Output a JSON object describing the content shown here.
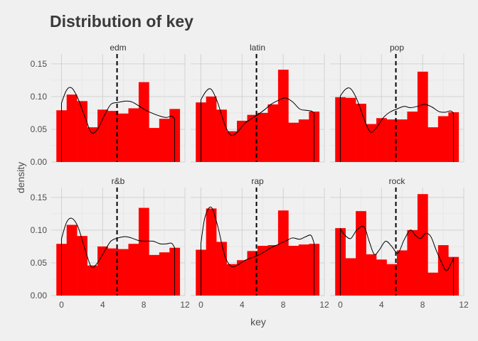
{
  "chart_data": {
    "type": "bar",
    "title": "Distribution of key",
    "xlabel": "key",
    "ylabel": "density",
    "xlim": [
      -1,
      12
    ],
    "ylim": [
      0,
      0.165
    ],
    "x_ticks": [
      0,
      4,
      8,
      12
    ],
    "y_ticks": [
      0.0,
      0.05,
      0.1,
      0.15
    ],
    "y_tick_labels": [
      "0.00",
      "0.05",
      "0.10",
      "0.15"
    ],
    "x_tick_labels": [
      "0",
      "4",
      "8",
      "12"
    ],
    "bin_centers": [
      0,
      1,
      2,
      3,
      4,
      5,
      6,
      7,
      8,
      9,
      10,
      11
    ],
    "bar_color": "#FF0000",
    "density_color": "#000000",
    "mean_line_style": "dashed",
    "panels": [
      {
        "label": "edm",
        "mean": 5.4,
        "values": [
          0.079,
          0.103,
          0.093,
          0.053,
          0.08,
          0.078,
          0.074,
          0.082,
          0.122,
          0.052,
          0.066,
          0.081
        ],
        "density": [
          [
            0,
            0.09
          ],
          [
            0.5,
            0.11
          ],
          [
            1,
            0.113
          ],
          [
            1.6,
            0.097
          ],
          [
            2.3,
            0.068
          ],
          [
            2.9,
            0.045
          ],
          [
            3.5,
            0.05
          ],
          [
            4.2,
            0.072
          ],
          [
            4.8,
            0.088
          ],
          [
            5.5,
            0.091
          ],
          [
            6.2,
            0.093
          ],
          [
            6.8,
            0.092
          ],
          [
            7.5,
            0.086
          ],
          [
            8.2,
            0.079
          ],
          [
            8.9,
            0.074
          ],
          [
            9.6,
            0.07
          ],
          [
            10.2,
            0.068
          ],
          [
            10.7,
            0.07
          ],
          [
            11,
            0.066
          ]
        ]
      },
      {
        "label": "latin",
        "mean": 5.4,
        "values": [
          0.091,
          0.1,
          0.08,
          0.047,
          0.063,
          0.072,
          0.075,
          0.088,
          0.141,
          0.06,
          0.065,
          0.077
        ],
        "density": [
          [
            0,
            0.095
          ],
          [
            0.5,
            0.108
          ],
          [
            1,
            0.111
          ],
          [
            1.6,
            0.092
          ],
          [
            2.3,
            0.058
          ],
          [
            2.9,
            0.041
          ],
          [
            3.5,
            0.045
          ],
          [
            4.2,
            0.058
          ],
          [
            4.8,
            0.065
          ],
          [
            5.5,
            0.072
          ],
          [
            6.2,
            0.08
          ],
          [
            6.8,
            0.088
          ],
          [
            7.5,
            0.094
          ],
          [
            8.2,
            0.098
          ],
          [
            8.9,
            0.092
          ],
          [
            9.6,
            0.081
          ],
          [
            10.2,
            0.079
          ],
          [
            10.7,
            0.078
          ],
          [
            11,
            0.075
          ]
        ]
      },
      {
        "label": "pop",
        "mean": 5.4,
        "values": [
          0.099,
          0.098,
          0.089,
          0.058,
          0.067,
          0.065,
          0.065,
          0.077,
          0.138,
          0.053,
          0.07,
          0.076
        ],
        "density": [
          [
            0,
            0.101
          ],
          [
            0.5,
            0.111
          ],
          [
            1,
            0.112
          ],
          [
            1.6,
            0.096
          ],
          [
            2.3,
            0.066
          ],
          [
            2.9,
            0.046
          ],
          [
            3.5,
            0.052
          ],
          [
            4.2,
            0.068
          ],
          [
            4.8,
            0.076
          ],
          [
            5.5,
            0.081
          ],
          [
            6.2,
            0.085
          ],
          [
            6.8,
            0.083
          ],
          [
            7.5,
            0.085
          ],
          [
            8.2,
            0.088
          ],
          [
            8.9,
            0.084
          ],
          [
            9.6,
            0.077
          ],
          [
            10.2,
            0.076
          ],
          [
            10.7,
            0.078
          ],
          [
            11,
            0.075
          ]
        ]
      },
      {
        "label": "r&b",
        "mean": 5.4,
        "values": [
          0.079,
          0.108,
          0.091,
          0.046,
          0.075,
          0.072,
          0.071,
          0.079,
          0.134,
          0.062,
          0.066,
          0.073
        ],
        "density": [
          [
            0,
            0.087
          ],
          [
            0.5,
            0.112
          ],
          [
            1,
            0.118
          ],
          [
            1.6,
            0.105
          ],
          [
            2.3,
            0.07
          ],
          [
            2.9,
            0.044
          ],
          [
            3.5,
            0.05
          ],
          [
            4.2,
            0.068
          ],
          [
            4.8,
            0.083
          ],
          [
            5.5,
            0.088
          ],
          [
            6.2,
            0.09
          ],
          [
            6.8,
            0.088
          ],
          [
            7.5,
            0.084
          ],
          [
            8.2,
            0.083
          ],
          [
            8.9,
            0.083
          ],
          [
            9.6,
            0.079
          ],
          [
            10.2,
            0.079
          ],
          [
            10.7,
            0.08
          ],
          [
            11,
            0.073
          ]
        ]
      },
      {
        "label": "rap",
        "mean": 5.4,
        "values": [
          0.07,
          0.133,
          0.082,
          0.048,
          0.054,
          0.068,
          0.076,
          0.077,
          0.13,
          0.076,
          0.078,
          0.079
        ],
        "density": [
          [
            0,
            0.08
          ],
          [
            0.4,
            0.12
          ],
          [
            1,
            0.135
          ],
          [
            1.6,
            0.108
          ],
          [
            2.3,
            0.062
          ],
          [
            2.9,
            0.045
          ],
          [
            3.5,
            0.046
          ],
          [
            4.2,
            0.053
          ],
          [
            4.8,
            0.057
          ],
          [
            5.5,
            0.061
          ],
          [
            6.2,
            0.067
          ],
          [
            6.8,
            0.073
          ],
          [
            7.5,
            0.078
          ],
          [
            8.2,
            0.083
          ],
          [
            8.9,
            0.088
          ],
          [
            9.6,
            0.086
          ],
          [
            10.2,
            0.09
          ],
          [
            10.7,
            0.092
          ],
          [
            11,
            0.08
          ]
        ]
      },
      {
        "label": "rock",
        "mean": 5.4,
        "values": [
          0.103,
          0.057,
          0.129,
          0.063,
          0.055,
          0.048,
          0.069,
          0.1,
          0.155,
          0.035,
          0.077,
          0.059
        ],
        "density": [
          [
            0,
            0.102
          ],
          [
            0.4,
            0.093
          ],
          [
            1,
            0.087
          ],
          [
            1.6,
            0.1
          ],
          [
            2.3,
            0.105
          ],
          [
            2.8,
            0.083
          ],
          [
            3.3,
            0.063
          ],
          [
            3.8,
            0.07
          ],
          [
            4.4,
            0.083
          ],
          [
            5,
            0.075
          ],
          [
            5.6,
            0.065
          ],
          [
            6.2,
            0.085
          ],
          [
            6.8,
            0.1
          ],
          [
            7.3,
            0.092
          ],
          [
            7.8,
            0.087
          ],
          [
            8.3,
            0.095
          ],
          [
            8.8,
            0.09
          ],
          [
            9.3,
            0.07
          ],
          [
            9.8,
            0.052
          ],
          [
            10.3,
            0.038
          ],
          [
            10.8,
            0.05
          ],
          [
            11,
            0.058
          ]
        ]
      }
    ]
  }
}
